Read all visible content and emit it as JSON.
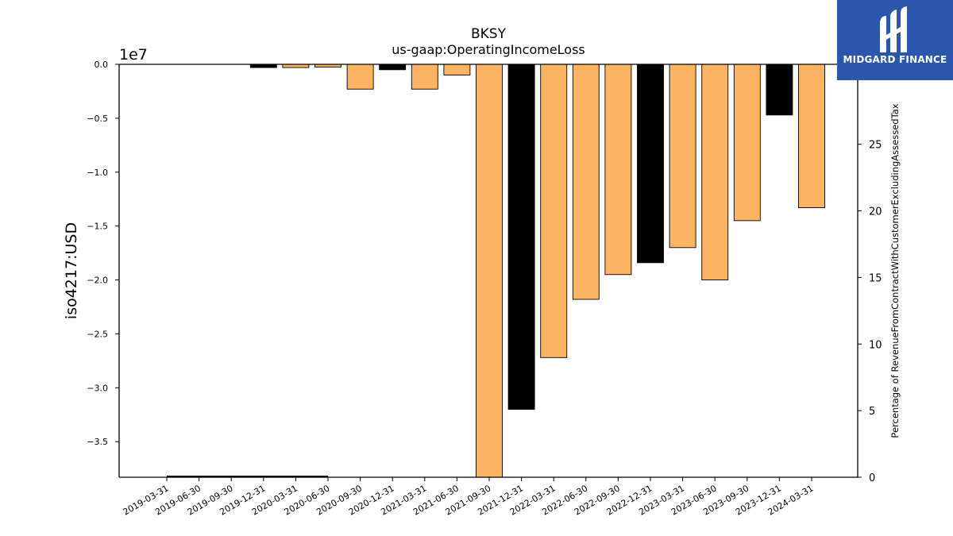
{
  "colors": {
    "orange": "#fdb462",
    "black": "#000000",
    "logo_bg": "#2a56ad"
  },
  "logo": {
    "name": "MIDGARD FINANCE",
    "icon": "midgard-mark-icon"
  },
  "chart_data": {
    "type": "bar",
    "title": "BKSY",
    "subtitle": "us-gaap:OperatingIncomeLoss",
    "ylabel": "iso4217:USD",
    "y_offset_label": "1e7",
    "y2label": "Percentage of RevenueFromContractWithCustomerExcludingAssessedTax",
    "ylim": [
      -38300000,
      0
    ],
    "y2lim": [
      0,
      31
    ],
    "yticks": [
      0.0,
      -0.5,
      -1.0,
      -1.5,
      -2.0,
      -2.5,
      -3.0,
      -3.5
    ],
    "ytick_labels": [
      "0.0",
      "−0.5",
      "−1.0",
      "−1.5",
      "−2.0",
      "−2.5",
      "−3.0",
      "−3.5"
    ],
    "y2ticks": [
      0,
      5,
      10,
      15,
      20,
      25
    ],
    "y2tick_labels": [
      "0",
      "5",
      "10",
      "15",
      "20",
      "25"
    ],
    "categories": [
      "2019-03-31",
      "2019-06-30",
      "2019-09-30",
      "2019-12-31",
      "2020-03-31",
      "2020-06-30",
      "2020-09-30",
      "2020-12-31",
      "2021-03-31",
      "2021-06-30",
      "2021-09-30",
      "2021-12-31",
      "2022-03-31",
      "2022-06-30",
      "2022-09-30",
      "2022-12-31",
      "2023-03-31",
      "2023-06-30",
      "2023-09-30",
      "2023-12-31",
      "2024-03-31"
    ],
    "series": [
      {
        "values": [
          0,
          0,
          0,
          -300000,
          -300000,
          -250000,
          -2300000,
          -500000,
          -2300000,
          -1000000,
          -38300000,
          -32000000,
          -27200000,
          -21800000,
          -19500000,
          -18400000,
          -17000000,
          -20000000,
          -14500000,
          -4700000,
          -13300000
        ],
        "colors": [
          "orange",
          "orange",
          "orange",
          "black",
          "orange",
          "orange",
          "orange",
          "black",
          "orange",
          "orange",
          "orange",
          "black",
          "orange",
          "orange",
          "orange",
          "black",
          "orange",
          "orange",
          "orange",
          "black",
          "orange"
        ]
      },
      {
        "y2_values": [
          0,
          0,
          0,
          0,
          0,
          0
        ],
        "x_range": [
          "2019-03-31",
          "2020-06-30"
        ]
      }
    ],
    "grid": false,
    "legend": "none"
  }
}
